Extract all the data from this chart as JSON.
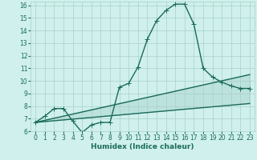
{
  "xlabel": "Humidex (Indice chaleur)",
  "bg_color": "#cff0ec",
  "line_color": "#1a6b5a",
  "grid_color": "#aacfca",
  "xlim": [
    -0.5,
    23.5
  ],
  "ylim": [
    6,
    16.3
  ],
  "xticks": [
    0,
    1,
    2,
    3,
    4,
    5,
    6,
    7,
    8,
    9,
    10,
    11,
    12,
    13,
    14,
    15,
    16,
    17,
    18,
    19,
    20,
    21,
    22,
    23
  ],
  "yticks": [
    6,
    7,
    8,
    9,
    10,
    11,
    12,
    13,
    14,
    15,
    16
  ],
  "line1_x": [
    0,
    1,
    2,
    3,
    4,
    5,
    6,
    7,
    8,
    9,
    10,
    11,
    12,
    13,
    14,
    15,
    16,
    17,
    18,
    19,
    20,
    21,
    22,
    23
  ],
  "line1_y": [
    6.7,
    7.2,
    7.8,
    7.8,
    6.8,
    5.9,
    6.5,
    6.7,
    6.7,
    9.5,
    9.8,
    11.1,
    13.3,
    14.8,
    15.6,
    16.1,
    16.1,
    14.5,
    11.0,
    10.3,
    9.9,
    9.6,
    9.4,
    9.4
  ],
  "line2_x": [
    0,
    23
  ],
  "line2_y": [
    6.7,
    8.2
  ],
  "line3_x": [
    0,
    23
  ],
  "line3_y": [
    6.7,
    10.5
  ],
  "marker": "+",
  "markersize": 4,
  "linewidth": 1.0,
  "tick_fontsize": 5.5,
  "xlabel_fontsize": 6.5
}
